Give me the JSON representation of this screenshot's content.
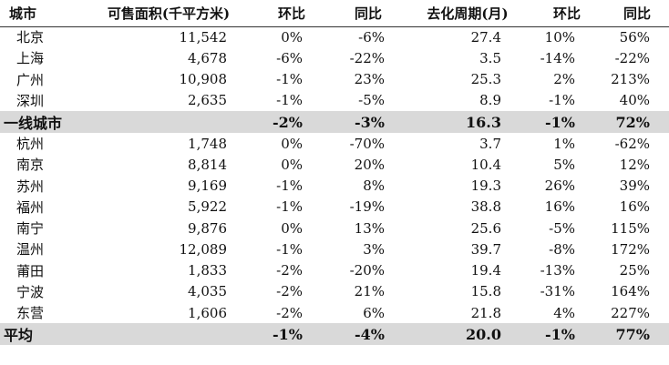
{
  "table": {
    "headers": {
      "city": "城市",
      "inventory": "可售面积(千平方米)",
      "mom1": "环比",
      "yoy1": "同比",
      "period": "去化周期(月)",
      "mom2": "环比",
      "yoy2": "同比"
    },
    "rows": [
      {
        "city": "北京",
        "inventory": "11,542",
        "mom1": "0%",
        "yoy1": "-6%",
        "period": "27.4",
        "mom2": "10%",
        "yoy2": "56%"
      },
      {
        "city": "上海",
        "inventory": "4,678",
        "mom1": "-6%",
        "yoy1": "-22%",
        "period": "3.5",
        "mom2": "-14%",
        "yoy2": "-22%"
      },
      {
        "city": "广州",
        "inventory": "10,908",
        "mom1": "-1%",
        "yoy1": "23%",
        "period": "25.3",
        "mom2": "2%",
        "yoy2": "213%"
      },
      {
        "city": "深圳",
        "inventory": "2,635",
        "mom1": "-1%",
        "yoy1": "-5%",
        "period": "8.9",
        "mom2": "-1%",
        "yoy2": "40%"
      },
      {
        "city": "一线城市",
        "inventory": "",
        "mom1": "-2%",
        "yoy1": "-3%",
        "period": "16.3",
        "mom2": "-1%",
        "yoy2": "72%",
        "summary": true
      },
      {
        "city": "杭州",
        "inventory": "1,748",
        "mom1": "0%",
        "yoy1": "-70%",
        "period": "3.7",
        "mom2": "1%",
        "yoy2": "-62%"
      },
      {
        "city": "南京",
        "inventory": "8,814",
        "mom1": "0%",
        "yoy1": "20%",
        "period": "10.4",
        "mom2": "5%",
        "yoy2": "12%"
      },
      {
        "city": "苏州",
        "inventory": "9,169",
        "mom1": "-1%",
        "yoy1": "8%",
        "period": "19.3",
        "mom2": "26%",
        "yoy2": "39%"
      },
      {
        "city": "福州",
        "inventory": "5,922",
        "mom1": "-1%",
        "yoy1": "-19%",
        "period": "38.8",
        "mom2": "16%",
        "yoy2": "16%"
      },
      {
        "city": "南宁",
        "inventory": "9,876",
        "mom1": "0%",
        "yoy1": "13%",
        "period": "25.6",
        "mom2": "-5%",
        "yoy2": "115%"
      },
      {
        "city": "温州",
        "inventory": "12,089",
        "mom1": "-1%",
        "yoy1": "3%",
        "period": "39.7",
        "mom2": "-8%",
        "yoy2": "172%"
      },
      {
        "city": "莆田",
        "inventory": "1,833",
        "mom1": "-2%",
        "yoy1": "-20%",
        "period": "19.4",
        "mom2": "-13%",
        "yoy2": "25%"
      },
      {
        "city": "宁波",
        "inventory": "4,035",
        "mom1": "-2%",
        "yoy1": "21%",
        "period": "15.8",
        "mom2": "-31%",
        "yoy2": "164%"
      },
      {
        "city": "东营",
        "inventory": "1,606",
        "mom1": "-2%",
        "yoy1": "6%",
        "period": "21.8",
        "mom2": "4%",
        "yoy2": "227%"
      },
      {
        "city": "平均",
        "inventory": "",
        "mom1": "-1%",
        "yoy1": "-4%",
        "period": "20.0",
        "mom2": "-1%",
        "yoy2": "77%",
        "summary": true
      }
    ]
  }
}
